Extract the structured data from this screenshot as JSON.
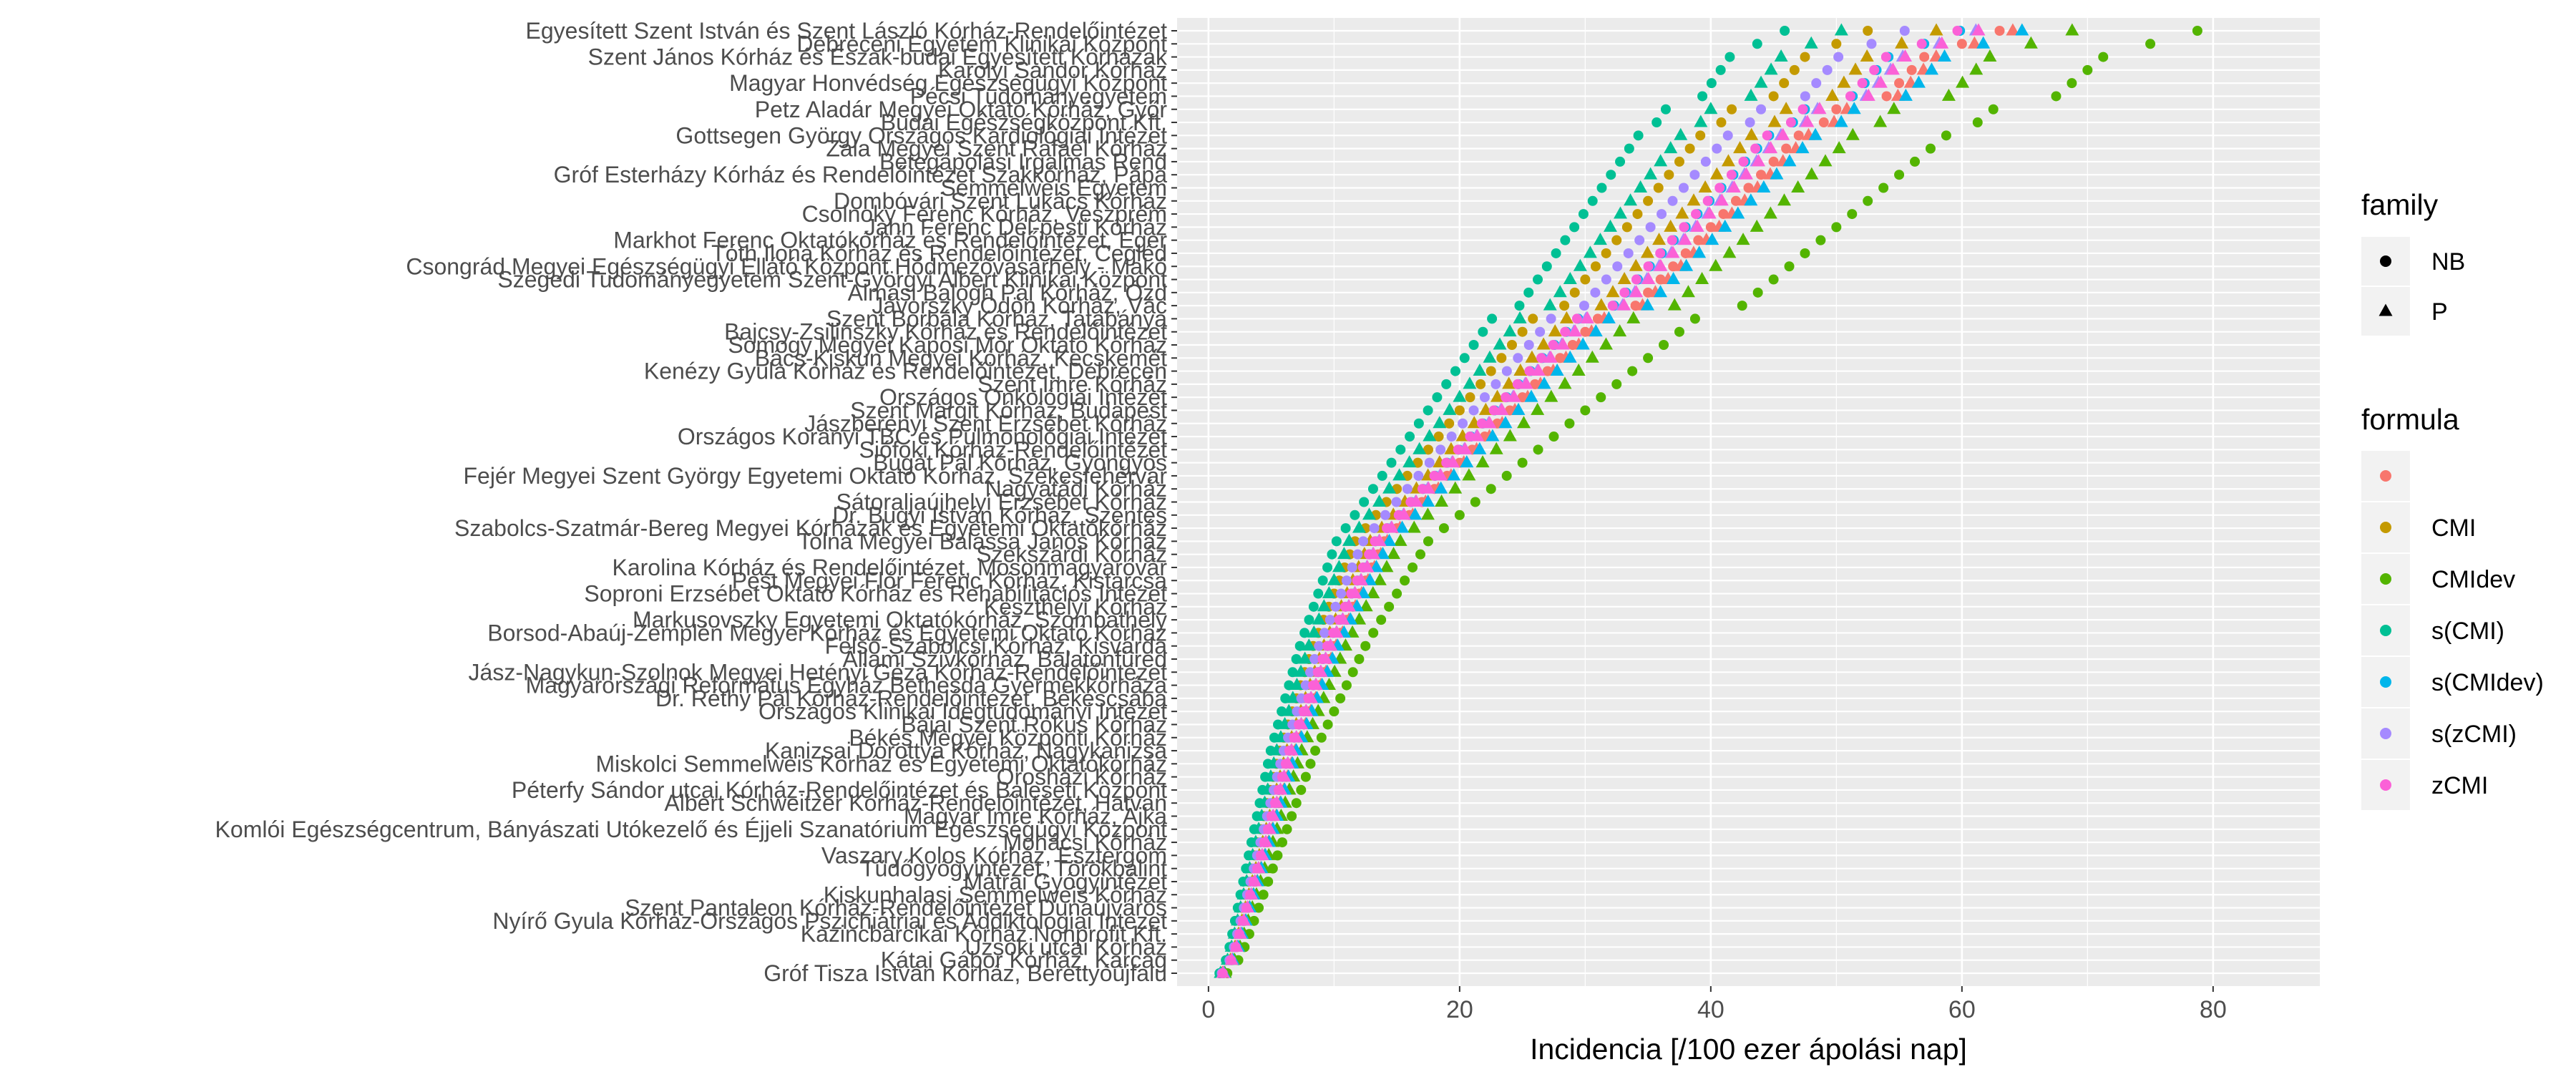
{
  "chart_data": {
    "type": "scatter",
    "title": "",
    "xlabel": "Incidencia [/100 ezer ápolási nap]",
    "ylabel": "",
    "xlim": [
      -2.5,
      88.5
    ],
    "xticks": [
      0,
      20,
      40,
      60,
      80
    ],
    "grid": true,
    "legend_position": "right",
    "categories": [
      "Egyesített Szent István és Szent László Kórház-Rendelőintézet",
      "Debreceni Egyetem Klinikai Központ",
      "Szent János Kórház és Észak-budai Egyesített Kórházak",
      "Karolyi Sandor Kórház",
      "Magyar Honvédség Egészségügyi Központ",
      "Pécsi Tudományegyetem",
      "Petz Aladár Megyei Oktató Kórház, Győr",
      "Budai Egészségközpont Kft.",
      "Gottsegen György Országos Kardiológiai Intézet",
      "Zala Megyei Szent Rafael Kórház",
      "Betegápolási Irgalmas Rend",
      "Gróf Esterházy Kórház és Rendelőintézet Szakkórház, Pápa",
      "Semmelweis Egyetem",
      "Dombóvári Szent Lukács Kórház",
      "Csolnoky Ferenc Kórház, Veszprém",
      "Jahn Ferenc Dél-pesti Kórház",
      "Markhot Ferenc Oktatókórház és Rendelőintézet, Eger",
      "Tóth Ilona Kórház és Rendelőintézet, Cegléd",
      "Csongrád Megyei Egészségügyi Ellátó Központ Hódmezővásárhely - Makó",
      "Szegedi Tudományegyetem Szent-Györgyi Albert Klinikai Központ",
      "Almási Balogh Pál Kórház, Ózd",
      "Jávorszky Ödön Kórház, Vác",
      "Szent Borbála Kórház, Tatabánya",
      "Bajcsy-Zsilinszky Kórház és Rendelőintézet",
      "Somogy Megyei Kaposi Mór Oktató Kórház",
      "Bács-Kiskun Megyei Kórház, Kecskemét",
      "Kenézy Gyula Kórház és Rendelőintézet, Debrecen",
      "Szent Imre Kórház",
      "Országos Onkológiai Intézet",
      "Szent Margit Kórház, Budapest",
      "Jászberényi Szent Erzsébet Kórház",
      "Országos Korányi TBC és Pulmonológiai Intézet",
      "Siófoki Kórház-Rendelőintézet",
      "Bugát Pál Kórház, Gyöngyös",
      "Fejér Megyei Szent György Egyetemi Oktató Kórház, Székesfehérvár",
      "Nagyatádi Kórház",
      "Sátoraljaújhelyi Erzsébet Kórház",
      "Dr. Bugyi István Kórház, Szentes",
      "Szabolcs-Szatmár-Bereg Megyei Kórházak és Egyetemi Oktatókórház",
      "Tolna Megyei Balassa János Kórház",
      "Szekszárdi Kórház",
      "Karolina Kórház és Rendelőintézet, Mosonmagyaróvár",
      "Pest Megyei Flór Ferenc Kórház, Kistarcsa",
      "Soproni Erzsébet Oktató Kórház és Rehabilitációs Intézet",
      "Keszthelyi Kórház",
      "Markusovszky Egyetemi Oktatókórház, Szombathely",
      "Borsod-Abaúj-Zemplén Megyei Kórház és Egyetemi Oktató Kórház",
      "Felső-Szabolcsi Kórház, Kisvárda",
      "Állami Szívkórház, Balatonfüred",
      "Jász-Nagykun-Szolnok Megyei Hetényi Géza Kórház-Rendelőintézet",
      "Magyarországi Református Egyház Bethesda Gyermekkórháza",
      "Dr. Réthy Pál Kórház-Rendelőintézet, Békéscsaba",
      "Országos Klinikai Idegtudományi Intézet",
      "Bajai Szent Rókus Kórház",
      "Békés Megyei Központi Kórház",
      "Kanizsai Dorottya Kórház, Nagykanizsa",
      "Miskolci Semmelweis Kórház és Egyetemi Oktatókórház",
      "Orosházi Kórház",
      "Péterfy Sándor utcai Kórház-Rendelőintézet és Baleseti Központ",
      "Albert Schweitzer Kórház-Rendelőintézet, Hatvan",
      "Magyar Imre Kórház, Ajka",
      "Komlói Egészségcentrum, Bányászati Utókezelő és Éjjeli Szanatórium Egészségügyi Központ",
      "Mohácsi Kórház",
      "Vaszary Kolos Kórház, Esztergom",
      "Tüdőgyógyintézet, Törökbálint",
      "Mátrai Gyógyintézet",
      "Kiskunhalasi Semmelweis Kórház",
      "Szent Pantaleon Kórház-Rendelőintézet Dunaújváros",
      "Nyírő Gyula Kórház-Országos Pszichiátriai és Addiktológiai Intézet",
      "Kazincbarcikai Kórház Nonprofit Kft.",
      "Uzsoki utcai Kórház",
      "Kátai Gábor Kórház, Karcag",
      "Gróf Tisza István Kórház, Berettyóújfalu"
    ],
    "base_values": [
      63,
      60,
      57,
      56,
      55,
      54,
      50,
      49,
      47,
      46,
      45,
      44,
      43,
      42,
      41,
      40,
      39,
      38,
      37,
      36,
      35,
      34,
      31,
      30,
      29,
      28,
      27,
      26,
      25,
      24,
      23,
      22,
      21,
      20,
      19,
      18,
      17,
      16,
      15,
      14,
      13.5,
      13,
      12.5,
      12,
      11.5,
      11,
      10.5,
      10,
      9.6,
      9.2,
      8.8,
      8.4,
      8,
      7.6,
      7.2,
      6.8,
      6.5,
      6.2,
      5.9,
      5.6,
      5.3,
      5,
      4.7,
      4.4,
      4.1,
      3.8,
      3.5,
      3.2,
      2.9,
      2.6,
      2.3,
      1.9,
      1.2
    ],
    "series": [
      {
        "name": "",
        "mult": [
          1.0,
          1.0
        ],
        "offset": [
          0,
          1
        ]
      },
      {
        "name": "CMI",
        "mult": [
          0.85,
          0.92
        ],
        "offset": [
          -1,
          0
        ]
      },
      {
        "name": "CMIdev",
        "mult": [
          1.25,
          1.1
        ],
        "offset": [
          0,
          -0.5
        ]
      },
      {
        "name": "s(CMI)",
        "mult": [
          0.72,
          0.8
        ],
        "offset": [
          0.5,
          0
        ]
      },
      {
        "name": "s(CMIdev)",
        "mult": [
          0.95,
          1.02
        ],
        "offset": [
          0,
          0.5
        ]
      },
      {
        "name": "s(zCMI)",
        "mult": [
          0.88,
          0.97
        ],
        "offset": [
          0,
          0
        ]
      },
      {
        "name": "zCMI",
        "mult": [
          0.93,
          0.99
        ],
        "offset": [
          1,
          -1
        ]
      }
    ],
    "legend": {
      "family_title": "family",
      "family_items": [
        {
          "label": "NB",
          "shape": "circle"
        },
        {
          "label": "P",
          "shape": "triangle"
        }
      ],
      "formula_title": "formula",
      "formula_items": [
        {
          "label": "",
          "color": "#F8766D"
        },
        {
          "label": "CMI",
          "color": "#C49A00"
        },
        {
          "label": "CMIdev",
          "color": "#53B400"
        },
        {
          "label": "s(CMI)",
          "color": "#00C094"
        },
        {
          "label": "s(CMIdev)",
          "color": "#00B6EB"
        },
        {
          "label": "s(zCMI)",
          "color": "#A58AFF"
        },
        {
          "label": "zCMI",
          "color": "#FB61D7"
        }
      ]
    },
    "colors": {
      "panel_background": "#EBEBEB",
      "grid_major": "#FFFFFF",
      "axis_text": "#4D4D4D",
      "title_text": "#000000"
    }
  }
}
